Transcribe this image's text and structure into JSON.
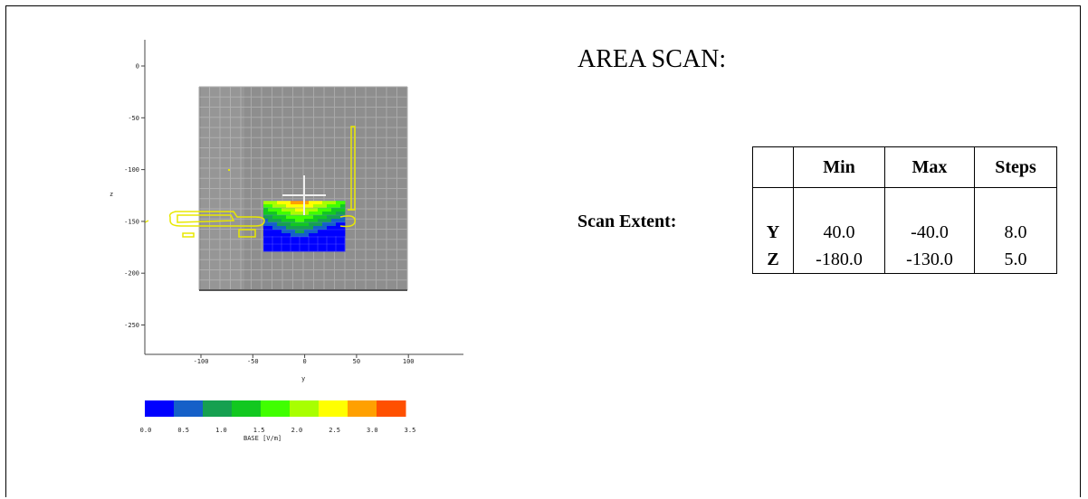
{
  "title": "AREA SCAN:",
  "scan_extent_label": "Scan Extent:",
  "table": {
    "headers": [
      "",
      "Min",
      "Max",
      "Steps"
    ],
    "rows": [
      {
        "axis": "Y",
        "min": "40.0",
        "max": "-40.0",
        "steps": "8.0"
      },
      {
        "axis": "Z",
        "min": "-180.0",
        "max": "-130.0",
        "steps": "5.0"
      }
    ]
  },
  "plot": {
    "ylabel": "z",
    "xlabel": "y",
    "y_ticks": [
      "0",
      "-50",
      "-100",
      "-150",
      "-200",
      "-250"
    ],
    "x_ticks": [
      "-100",
      "-50",
      "0",
      "50",
      "100"
    ],
    "colorbar": {
      "label": "BASE [V/m]",
      "ticks": [
        "0.0",
        "0.5",
        "1.0",
        "1.5",
        "2.0",
        "2.5",
        "3.0",
        "3.5"
      ],
      "colors": [
        "#0000ff",
        "#1560c8",
        "#16a050",
        "#12c820",
        "#40ff00",
        "#a8ff00",
        "#ffff00",
        "#ffa000",
        "#ff5000"
      ]
    }
  }
}
